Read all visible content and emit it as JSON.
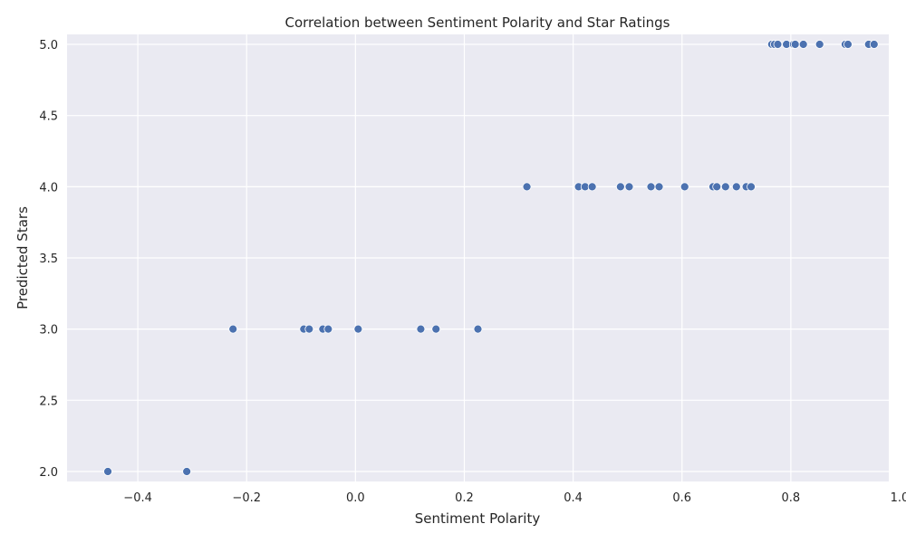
{
  "chart_data": {
    "type": "scatter",
    "title": "Correlation between Sentiment Polarity and Star Ratings",
    "xlabel": "Sentiment Polarity",
    "ylabel": "Predicted Stars",
    "xlim": [
      -0.53,
      0.98
    ],
    "ylim": [
      1.93,
      5.07
    ],
    "xticks": [
      -0.4,
      -0.2,
      0.0,
      0.2,
      0.4,
      0.6,
      0.8,
      1.0
    ],
    "xtick_labels": [
      "−0.4",
      "−0.2",
      "0.0",
      "0.2",
      "0.4",
      "0.6",
      "0.8",
      "1.0"
    ],
    "yticks": [
      2.0,
      2.5,
      3.0,
      3.5,
      4.0,
      4.5,
      5.0
    ],
    "ytick_labels": [
      "2.0",
      "2.5",
      "3.0",
      "3.5",
      "4.0",
      "4.5",
      "5.0"
    ],
    "grid": true,
    "background": "#eaeaf2",
    "point_color": "#4c72b0",
    "points": [
      {
        "x": -0.455,
        "y": 2.0
      },
      {
        "x": -0.31,
        "y": 2.0
      },
      {
        "x": -0.225,
        "y": 3.0
      },
      {
        "x": -0.095,
        "y": 3.0
      },
      {
        "x": -0.085,
        "y": 3.0
      },
      {
        "x": -0.06,
        "y": 3.0
      },
      {
        "x": -0.05,
        "y": 3.0
      },
      {
        "x": 0.005,
        "y": 3.0
      },
      {
        "x": 0.12,
        "y": 3.0
      },
      {
        "x": 0.148,
        "y": 3.0
      },
      {
        "x": 0.225,
        "y": 3.0
      },
      {
        "x": 0.315,
        "y": 4.0
      },
      {
        "x": 0.41,
        "y": 4.0
      },
      {
        "x": 0.422,
        "y": 4.0
      },
      {
        "x": 0.435,
        "y": 4.0
      },
      {
        "x": 0.487,
        "y": 4.0
      },
      {
        "x": 0.503,
        "y": 4.0
      },
      {
        "x": 0.543,
        "y": 4.0
      },
      {
        "x": 0.558,
        "y": 4.0
      },
      {
        "x": 0.605,
        "y": 4.0
      },
      {
        "x": 0.657,
        "y": 4.0
      },
      {
        "x": 0.664,
        "y": 4.0
      },
      {
        "x": 0.68,
        "y": 4.0
      },
      {
        "x": 0.7,
        "y": 4.0
      },
      {
        "x": 0.718,
        "y": 4.0
      },
      {
        "x": 0.727,
        "y": 4.0
      },
      {
        "x": 0.765,
        "y": 5.0
      },
      {
        "x": 0.77,
        "y": 5.0
      },
      {
        "x": 0.776,
        "y": 5.0
      },
      {
        "x": 0.792,
        "y": 5.0
      },
      {
        "x": 0.805,
        "y": 5.0
      },
      {
        "x": 0.808,
        "y": 5.0
      },
      {
        "x": 0.823,
        "y": 5.0
      },
      {
        "x": 0.853,
        "y": 5.0
      },
      {
        "x": 0.9,
        "y": 5.0
      },
      {
        "x": 0.905,
        "y": 5.0
      },
      {
        "x": 0.943,
        "y": 5.0
      },
      {
        "x": 0.953,
        "y": 5.0
      }
    ]
  }
}
